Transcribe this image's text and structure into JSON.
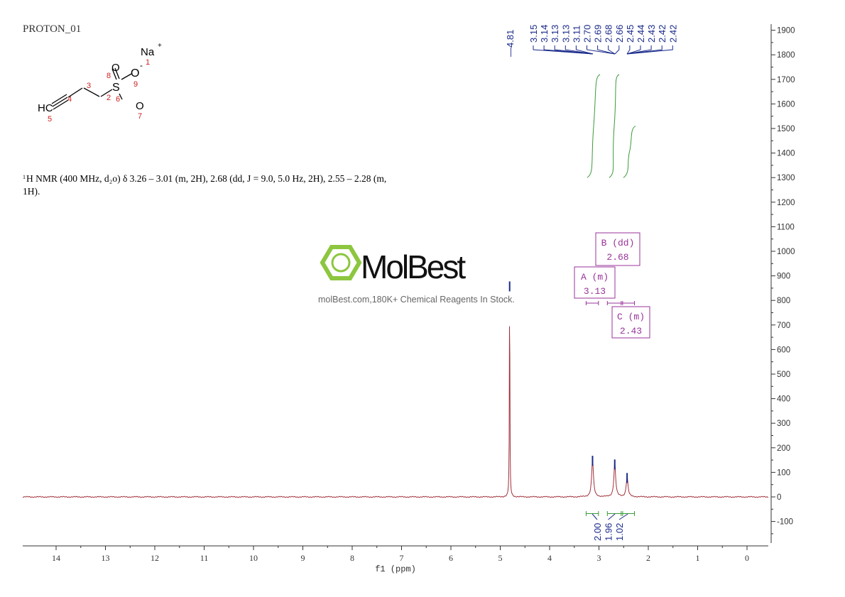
{
  "sample_name": "PROTON_01",
  "structure": {
    "atoms": {
      "na": "Na",
      "na_charge": "+",
      "o_minus": "O",
      "o_charge": "-",
      "s": "S",
      "o_top": "O",
      "o_bottom": "O",
      "hc": "HC"
    },
    "numbers": [
      "1",
      "2",
      "3",
      "4",
      "5",
      "6",
      "7",
      "8",
      "9"
    ]
  },
  "nmr_description": {
    "line1": "H NMR (400 MHz, d₂o) δ 3.26 – 3.01 (m, 2H), 2.68 (dd, J = 9.0, 5.0 Hz, 2H), 2.55 – 2.28 (m,",
    "superscript": "1",
    "line2": "1H)."
  },
  "watermark": {
    "brand": "MolBest",
    "tagline": "molBest.com,180K+ Chemical Reagents In Stock.",
    "color": "#8dc63f"
  },
  "chart_data": {
    "type": "line",
    "xlabel": "f1 (ppm)",
    "xlim": [
      14.68,
      -0.43
    ],
    "ylim": [
      -190,
      1950
    ],
    "x_ticks": [
      "14",
      "13",
      "12",
      "11",
      "10",
      "9",
      "8",
      "7",
      "6",
      "5",
      "4",
      "3",
      "2",
      "1",
      "0"
    ],
    "y_ticks": [
      "1900",
      "1800",
      "1700",
      "1600",
      "1500",
      "1400",
      "1300",
      "1200",
      "1100",
      "1000",
      "900",
      "800",
      "700",
      "600",
      "500",
      "400",
      "300",
      "200",
      "100",
      "0",
      "-100"
    ],
    "peaks": [
      {
        "ppm": 4.81,
        "intensity": 860
      },
      {
        "ppm": 3.13,
        "intensity": 150
      },
      {
        "ppm": 2.68,
        "intensity": 135
      },
      {
        "ppm": 2.43,
        "intensity": 80
      }
    ],
    "peak_labels": [
      "4.81",
      "3.15",
      "3.14",
      "3.13",
      "3.13",
      "3.11",
      "2.70",
      "2.69",
      "2.68",
      "2.66",
      "2.45",
      "2.44",
      "2.43",
      "2.42",
      "2.42"
    ],
    "multiplets": [
      {
        "label": "B (dd)",
        "shift": "2.68",
        "range": [
          2.83,
          2.52
        ]
      },
      {
        "label": "A (m)",
        "shift": "3.13",
        "range": [
          3.26,
          3.01
        ]
      },
      {
        "label": "C (m)",
        "shift": "2.43",
        "range": [
          2.55,
          2.28
        ]
      }
    ],
    "integrals": [
      {
        "value": "2.00",
        "range": [
          3.26,
          3.01
        ]
      },
      {
        "value": "1.96",
        "range": [
          2.83,
          2.52
        ]
      },
      {
        "value": "1.02",
        "range": [
          2.55,
          2.28
        ]
      }
    ],
    "colors": {
      "spectrum": "#a0303a",
      "peak_top": "#1a2a8a",
      "integral": "#3a9a3a",
      "label": "#1a2a8a",
      "multiplet": "#993399"
    }
  }
}
